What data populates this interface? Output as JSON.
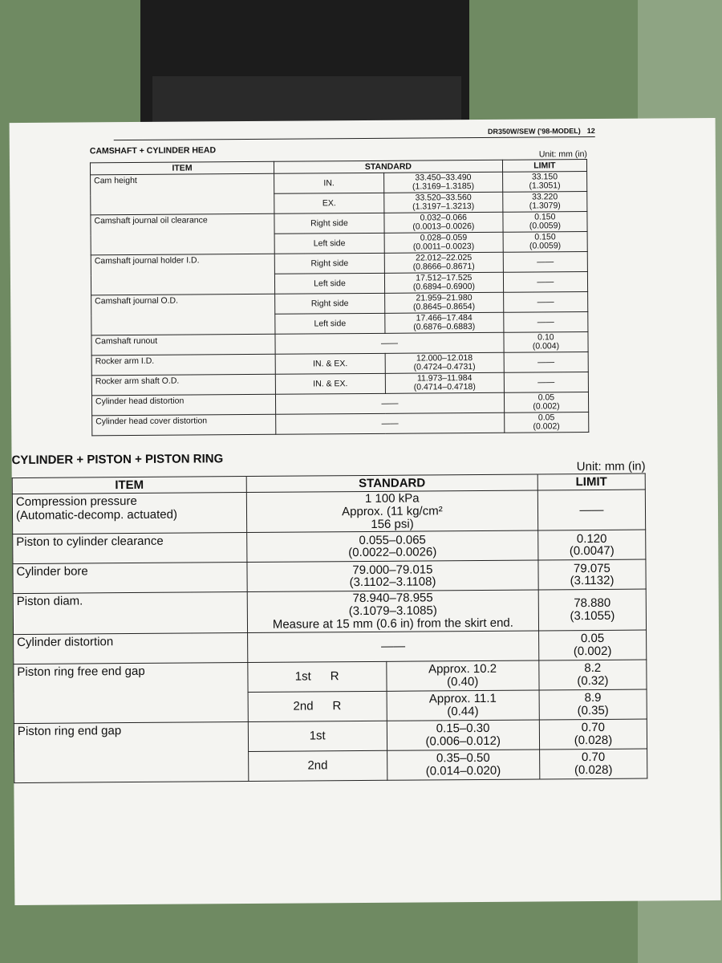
{
  "header": {
    "model": "DR350W/SEW ('98-MODEL)",
    "page": "12"
  },
  "sections": [
    {
      "title": "CAMSHAFT + CYLINDER HEAD",
      "unit": "Unit: mm (in)",
      "columns": [
        "ITEM",
        "STANDARD",
        "LIMIT"
      ],
      "items": [
        {
          "label": [
            "Cam height"
          ],
          "rows": [
            {
              "sub": [
                "IN."
              ],
              "standard": [
                "33.450–33.490",
                "(1.3169–1.3185)"
              ],
              "limit": [
                "33.150",
                "(1.3051)"
              ]
            },
            {
              "sub": [
                "EX."
              ],
              "standard": [
                "33.520–33.560",
                "(1.3197–1.3213)"
              ],
              "limit": [
                "33.220",
                "(1.3079)"
              ]
            }
          ]
        },
        {
          "label": [
            "Camshaft journal oil clearance"
          ],
          "rows": [
            {
              "sub": [
                "Right side"
              ],
              "standard": [
                "0.032–0.066",
                "(0.0013–0.0026)"
              ],
              "limit": [
                "0.150",
                "(0.0059)"
              ]
            },
            {
              "sub": [
                "Left side"
              ],
              "standard": [
                "0.028–0.059",
                "(0.0011–0.0023)"
              ],
              "limit": [
                "0.150",
                "(0.0059)"
              ]
            }
          ]
        },
        {
          "label": [
            "Camshaft journal holder I.D."
          ],
          "rows": [
            {
              "sub": [
                "Right side"
              ],
              "standard": [
                "22.012–22.025",
                "(0.8666–0.8671)"
              ],
              "limit": [
                "——"
              ]
            },
            {
              "sub": [
                "Left side"
              ],
              "standard": [
                "17.512–17.525",
                "(0.6894–0.6900)"
              ],
              "limit": [
                "——"
              ]
            }
          ]
        },
        {
          "label": [
            "Camshaft journal O.D."
          ],
          "rows": [
            {
              "sub": [
                "Right side"
              ],
              "standard": [
                "21.959–21.980",
                "(0.8645–0.8654)"
              ],
              "limit": [
                "——"
              ]
            },
            {
              "sub": [
                "Left side"
              ],
              "standard": [
                "17.466–17.484",
                "(0.6876–0.6883)"
              ],
              "limit": [
                "——"
              ]
            }
          ]
        },
        {
          "label": [
            "Camshaft runout"
          ],
          "rows": [
            {
              "standard": [
                "——"
              ],
              "limit": [
                "0.10",
                "(0.004)"
              ]
            }
          ]
        },
        {
          "label": [
            "Rocker arm I.D."
          ],
          "rows": [
            {
              "sub": [
                "IN. & EX."
              ],
              "standard": [
                "12.000–12.018",
                "(0.4724–0.4731)"
              ],
              "limit": [
                "——"
              ]
            }
          ]
        },
        {
          "label": [
            "Rocker arm shaft O.D."
          ],
          "rows": [
            {
              "sub": [
                "IN. & EX."
              ],
              "standard": [
                "11.973–11.984",
                "(0.4714–0.4718)"
              ],
              "limit": [
                "——"
              ]
            }
          ]
        },
        {
          "label": [
            "Cylinder head distortion"
          ],
          "rows": [
            {
              "standard": [
                "——"
              ],
              "limit": [
                "0.05",
                "(0.002)"
              ]
            }
          ]
        },
        {
          "label": [
            "Cylinder head cover distortion"
          ],
          "rows": [
            {
              "standard": [
                "——"
              ],
              "limit": [
                "0.05",
                "(0.002)"
              ]
            }
          ]
        }
      ]
    },
    {
      "title": "CYLINDER + PISTON + PISTON RING",
      "unit": "Unit: mm (in)",
      "columns": [
        "ITEM",
        "STANDARD",
        "LIMIT"
      ],
      "items": [
        {
          "label": [
            "Compression pressure",
            "(Automatic-decomp. actuated)"
          ],
          "rows": [
            {
              "standard": [
                "1 100 kPa",
                "Approx. (11 kg/cm²",
                "156 psi)"
              ],
              "limit": [
                "——"
              ]
            }
          ]
        },
        {
          "label": [
            "Piston to cylinder clearance"
          ],
          "rows": [
            {
              "standard": [
                "0.055–0.065",
                "(0.0022–0.0026)"
              ],
              "limit": [
                "0.120",
                "(0.0047)"
              ]
            }
          ]
        },
        {
          "label": [
            "Cylinder bore"
          ],
          "rows": [
            {
              "standard": [
                "79.000–79.015",
                "(3.1102–3.1108)"
              ],
              "limit": [
                "79.075",
                "(3.1132)"
              ]
            }
          ]
        },
        {
          "label": [
            "Piston diam."
          ],
          "rows": [
            {
              "standard": [
                "78.940–78.955",
                "(3.1079–3.1085)",
                "Measure at 15 mm (0.6 in) from the skirt end."
              ],
              "limit": [
                "78.880",
                "(3.1055)"
              ]
            }
          ]
        },
        {
          "label": [
            "Cylinder distortion"
          ],
          "rows": [
            {
              "standard": [
                "——"
              ],
              "limit": [
                "0.05",
                "(0.002)"
              ]
            }
          ]
        },
        {
          "label": [
            "Piston ring free end gap"
          ],
          "rows": [
            {
              "sub": [
                "1st",
                "R"
              ],
              "standard": [
                "Approx. 10.2",
                "(0.40)"
              ],
              "limit": [
                "8.2",
                "(0.32)"
              ]
            },
            {
              "sub": [
                "2nd",
                "R"
              ],
              "standard": [
                "Approx. 11.1",
                "(0.44)"
              ],
              "limit": [
                "8.9",
                "(0.35)"
              ]
            }
          ]
        },
        {
          "label": [
            "Piston ring end gap"
          ],
          "rows": [
            {
              "sub": [
                "1st"
              ],
              "standard": [
                "0.15–0.30",
                "(0.006–0.012)"
              ],
              "limit": [
                "0.70",
                "(0.028)"
              ]
            },
            {
              "sub": [
                "2nd"
              ],
              "standard": [
                "0.35–0.50",
                "(0.014–0.020)"
              ],
              "limit": [
                "0.70",
                "(0.028)"
              ]
            }
          ]
        }
      ]
    }
  ]
}
